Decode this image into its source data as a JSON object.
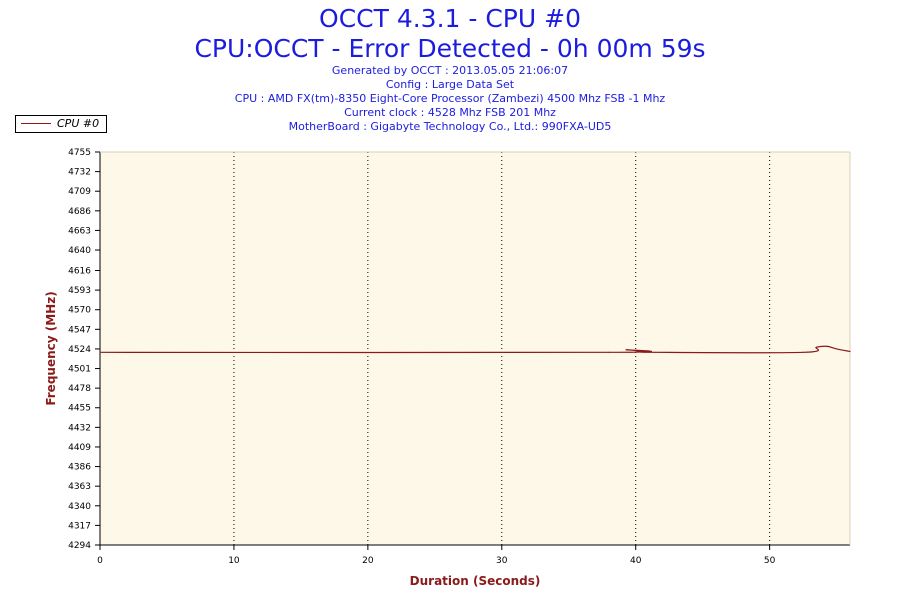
{
  "header": {
    "title": "OCCT 4.3.1 - CPU #0",
    "subtitle": "CPU:OCCT - Error Detected - 0h 00m 59s",
    "info_lines": [
      "Generated by OCCT : 2013.05.05 21:06:07",
      "Config : Large Data Set",
      "CPU : AMD FX(tm)-8350 Eight-Core Processor (Zambezi) 4500 Mhz FSB -1 Mhz",
      "Current clock : 4528 Mhz FSB 201 Mhz",
      "MotherBoard : Gigabyte Technology Co., Ltd.: 990FXA-UD5"
    ]
  },
  "colors": {
    "series": "#8b1a1a",
    "plot_bg": "#fdf8e8",
    "title": "#1c1ce0",
    "axis_label": "#8b1a1a"
  },
  "chart_data": {
    "type": "line",
    "title": "OCCT 4.3.1 - CPU #0",
    "xlabel": "Duration (Seconds)",
    "ylabel": "Frequency (MHz)",
    "xlim": [
      0,
      56
    ],
    "ylim": [
      4294,
      4755
    ],
    "x_ticks": [
      0,
      10,
      20,
      30,
      40,
      50
    ],
    "y_ticks": [
      4294,
      4317,
      4340,
      4363,
      4386,
      4409,
      4432,
      4455,
      4478,
      4501,
      4524,
      4547,
      4570,
      4593,
      4616,
      4640,
      4663,
      4686,
      4709,
      4732,
      4755
    ],
    "grid": "vertical-dotted",
    "legend": "top-left",
    "series": [
      {
        "name": "CPU #0",
        "x": [
          0,
          38,
          39.3,
          40.5,
          41.5,
          52.5,
          53.5,
          54.3,
          55,
          56
        ],
        "y": [
          4520,
          4520,
          4523,
          4521,
          4520,
          4520,
          4526,
          4527,
          4524,
          4521
        ]
      }
    ]
  }
}
